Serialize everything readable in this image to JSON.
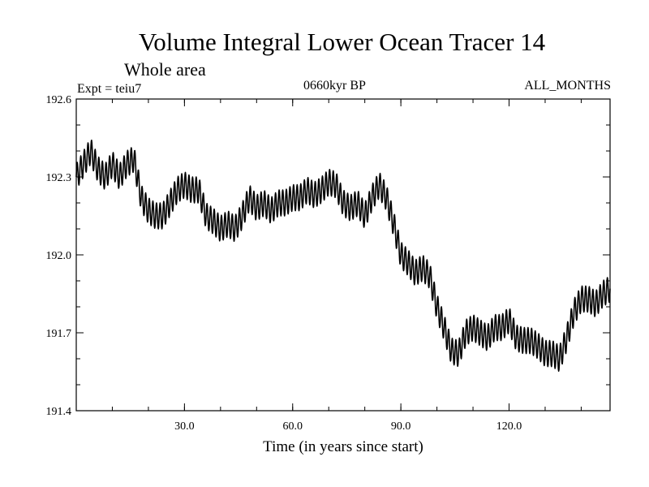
{
  "header": {
    "title": "Volume Integral Lower Ocean Tracer 14",
    "subtitle": "Whole area",
    "experiment": "Expt = teiu7",
    "period": "0660kyr BP",
    "months": "ALL_MONTHS"
  },
  "chart_data": {
    "type": "line",
    "title": "Volume Integral Lower Ocean Tracer 14",
    "subtitle": "Whole area",
    "xlabel": "Time (in years since start)",
    "ylabel": "",
    "xlim": [
      0,
      148
    ],
    "ylim": [
      191.4,
      192.6
    ],
    "xticks": [
      30,
      60,
      90,
      120
    ],
    "xtick_labels": [
      "30.0",
      "60.0",
      "90.0",
      "120.0"
    ],
    "yticks": [
      191.4,
      191.7,
      192.0,
      192.3,
      192.6
    ],
    "ytick_labels": [
      "191.4",
      "191.7",
      "192.0",
      "192.3",
      "192.6"
    ],
    "grid": false,
    "seasonal_cycle_amplitude": 0.05,
    "series": [
      {
        "name": "Tracer 14",
        "x": [
          0,
          2,
          4,
          6,
          8,
          10,
          12,
          14,
          16,
          18,
          20,
          22,
          24,
          26,
          28,
          30,
          32,
          34,
          36,
          38,
          40,
          42,
          44,
          46,
          48,
          50,
          52,
          54,
          56,
          58,
          60,
          62,
          64,
          66,
          68,
          70,
          72,
          74,
          76,
          78,
          80,
          82,
          84,
          86,
          88,
          90,
          92,
          94,
          96,
          98,
          100,
          102,
          104,
          106,
          108,
          110,
          112,
          114,
          116,
          118,
          120,
          122,
          124,
          126,
          128,
          130,
          132,
          134,
          136,
          138,
          140,
          142,
          144,
          146,
          148
        ],
        "values": [
          192.3,
          192.35,
          192.4,
          192.33,
          192.3,
          192.35,
          192.3,
          192.35,
          192.37,
          192.22,
          192.17,
          192.15,
          192.15,
          192.2,
          192.25,
          192.27,
          192.25,
          192.25,
          192.15,
          192.13,
          192.1,
          192.12,
          192.1,
          192.15,
          192.22,
          192.18,
          192.2,
          192.17,
          192.2,
          192.2,
          192.22,
          192.22,
          192.25,
          192.23,
          192.25,
          192.28,
          192.27,
          192.2,
          192.18,
          192.2,
          192.15,
          192.22,
          192.27,
          192.22,
          192.12,
          192.0,
          191.97,
          191.93,
          191.95,
          191.92,
          191.8,
          191.72,
          191.63,
          191.62,
          191.7,
          191.72,
          191.7,
          191.68,
          191.72,
          191.72,
          191.75,
          191.68,
          191.67,
          191.67,
          191.65,
          191.62,
          191.62,
          191.6,
          191.68,
          191.78,
          191.83,
          191.83,
          191.81,
          191.85,
          191.87
        ]
      }
    ]
  }
}
